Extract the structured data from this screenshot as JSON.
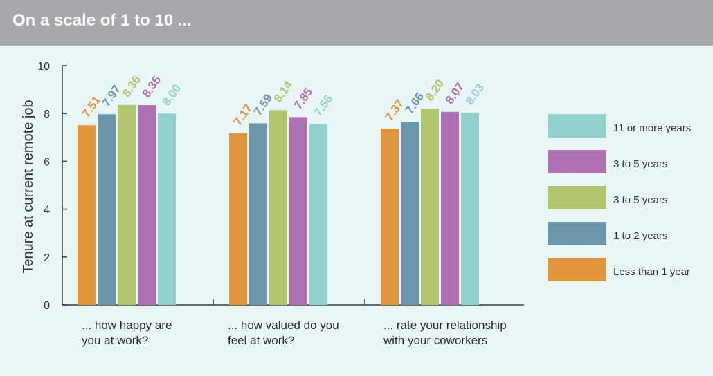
{
  "header": {
    "title": "On a scale of 1 to 10 ..."
  },
  "colors": {
    "background": "#e9f6f8",
    "header_bg": "#a6a8ab",
    "axis": "#3a3a3a",
    "series": [
      "#e2963c",
      "#6b95a9",
      "#b1c56d",
      "#ac70b3",
      "#93d1cc"
    ]
  },
  "chart_data": {
    "type": "bar",
    "title": "On a scale of 1 to 10 ...",
    "ylabel": "Tenure at current remote job",
    "xlabel": "",
    "ylim": [
      0,
      10
    ],
    "yticks": [
      0,
      2,
      4,
      6,
      8,
      10
    ],
    "categories": [
      [
        "... how happy are",
        "you at work?"
      ],
      [
        "... how valued do you",
        "feel at work?"
      ],
      [
        "... rate your relationship",
        "with your coworkers"
      ]
    ],
    "series": [
      {
        "name": "Less than 1 year",
        "values": [
          7.51,
          7.17,
          7.37
        ]
      },
      {
        "name": "1 to 2 years",
        "values": [
          7.97,
          7.59,
          7.66
        ]
      },
      {
        "name": "3 to 5 years",
        "values": [
          8.36,
          8.14,
          8.2
        ]
      },
      {
        "name": "3 to 5 years",
        "values": [
          8.35,
          7.85,
          8.07
        ]
      },
      {
        "name": "11 or more years",
        "values": [
          8.0,
          7.56,
          8.03
        ]
      }
    ],
    "value_labels": [
      [
        "7.51",
        "7.97",
        "8.36",
        "8.35",
        "8.00"
      ],
      [
        "7.17",
        "7.59",
        "8.14",
        "7.85",
        "7.56"
      ],
      [
        "7.37",
        "7.66",
        "8.20",
        "8.07",
        "8.03"
      ]
    ],
    "legend_position": "right",
    "legend_order": [
      4,
      3,
      2,
      1,
      0
    ],
    "grid": false
  }
}
